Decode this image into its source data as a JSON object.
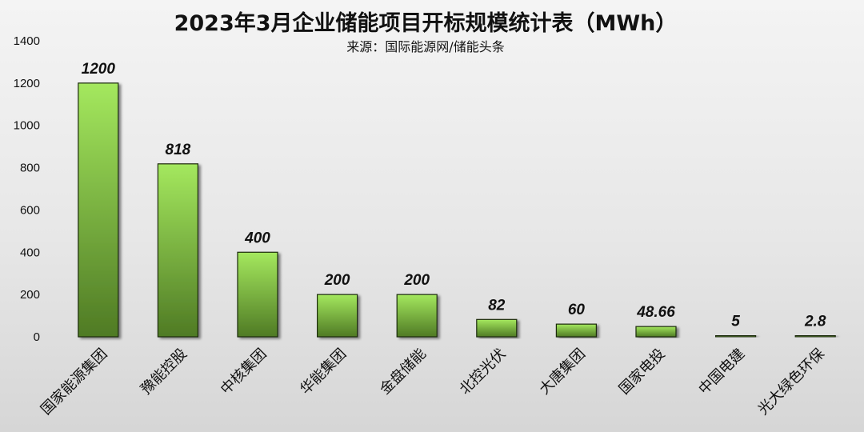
{
  "chart_data": {
    "type": "bar",
    "title": "2023年3月企业储能项目开标规模统计表（MWh）",
    "subtitle": "来源：国际能源网/储能头条",
    "categories": [
      "国家能源集团",
      "豫能控股",
      "中核集团",
      "华能集团",
      "金盘储能",
      "北控光伏",
      "大唐集团",
      "国家电投",
      "中国电建",
      "光大绿色环保"
    ],
    "values": [
      1200,
      818,
      400,
      200,
      200,
      82,
      60,
      48.66,
      5,
      2.8
    ],
    "data_labels": [
      "1200",
      "818",
      "400",
      "200",
      "200",
      "82",
      "60",
      "48.66",
      "5",
      "2.8"
    ],
    "yticks": [
      "0",
      "200",
      "400",
      "600",
      "800",
      "1000",
      "1200",
      "1400"
    ],
    "ylim": [
      0,
      1400
    ],
    "grid": false,
    "legend": "none",
    "colors": {
      "bar_top": "#a4e85e",
      "bar_bottom": "#4f7a24",
      "bar_edge": "#1c2b0c"
    }
  }
}
